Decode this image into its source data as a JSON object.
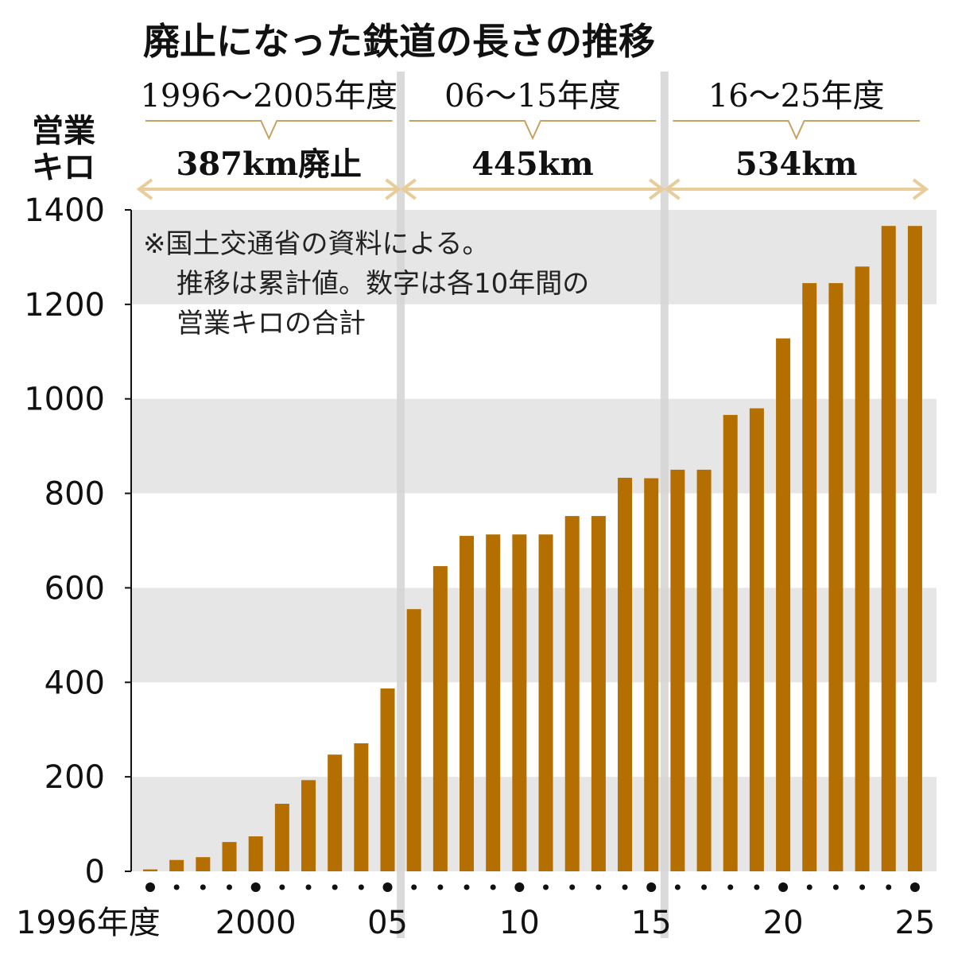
{
  "chart_data": {
    "type": "bar",
    "title": "廃止になった鉄道の長さの推移",
    "ylabel": [
      "営業",
      "キロ"
    ],
    "ylim": [
      0,
      1400
    ],
    "yticks": [
      0,
      200,
      400,
      600,
      800,
      1000,
      1200,
      1400
    ],
    "ytick_labels": [
      "0",
      "200",
      "400",
      "600",
      "800",
      "1000",
      "1200",
      "1400"
    ],
    "categories": [
      1996,
      1997,
      1998,
      1999,
      2000,
      2001,
      2002,
      2003,
      2004,
      2005,
      2006,
      2007,
      2008,
      2009,
      2010,
      2011,
      2012,
      2013,
      2014,
      2015,
      2016,
      2017,
      2018,
      2019,
      2020,
      2021,
      2022,
      2023,
      2024,
      2025
    ],
    "values": [
      4,
      24,
      30,
      62,
      74,
      143,
      193,
      247,
      271,
      387,
      555,
      646,
      710,
      713,
      713,
      713,
      752,
      752,
      833,
      832,
      850,
      850,
      966,
      980,
      1128,
      1245,
      1245,
      1280,
      1366,
      1366
    ],
    "xtick_labels": [
      {
        "year": 1996,
        "label": "1996年度"
      },
      {
        "year": 2000,
        "label": "2000"
      },
      {
        "year": 2005,
        "label": "05"
      },
      {
        "year": 2010,
        "label": "10"
      },
      {
        "year": 2015,
        "label": "15"
      },
      {
        "year": 2020,
        "label": "20"
      },
      {
        "year": 2025,
        "label": "25"
      }
    ],
    "periods": [
      {
        "label": "1996〜2005年度",
        "total": "387km廃止",
        "start": 1996,
        "end": 2005
      },
      {
        "label": "06〜15年度",
        "total": "445km",
        "start": 2006,
        "end": 2015
      },
      {
        "label": "16〜25年度",
        "total": "534km",
        "start": 2016,
        "end": 2025
      }
    ],
    "note": [
      "※国土交通省の資料による。",
      "推移は累計値。数字は各10年間の",
      "営業キロの合計"
    ],
    "grid": "alternating horizontal bands",
    "colors": {
      "bar": "#b56e00",
      "band": "#e6e6e6",
      "bracket": "#c8a060",
      "arrow": "#e8cc9a"
    }
  }
}
